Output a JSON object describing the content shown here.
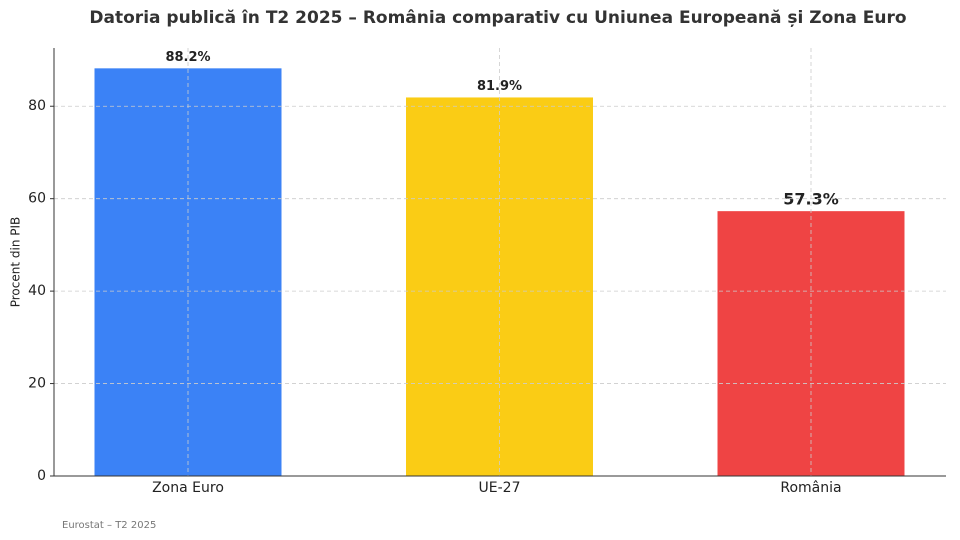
{
  "chart_data": {
    "type": "bar",
    "title": "Datoria publică în T2 2025 – România comparativ cu Uniunea Europeană și Zona Euro",
    "y_label": "Procent din PIB",
    "source": "Eurostat – T2 2025",
    "categories": [
      "Zona Euro",
      "UE-27",
      "România"
    ],
    "values": [
      88.2,
      81.9,
      57.3
    ],
    "value_labels": [
      "88.2%",
      "81.9%",
      "57.3%"
    ],
    "colors": [
      "#3b82f6",
      "#facc15",
      "#ef4444"
    ],
    "ylim": [
      0,
      92.6
    ],
    "yticks": [
      0,
      20,
      40,
      60,
      80
    ],
    "grid": true
  }
}
